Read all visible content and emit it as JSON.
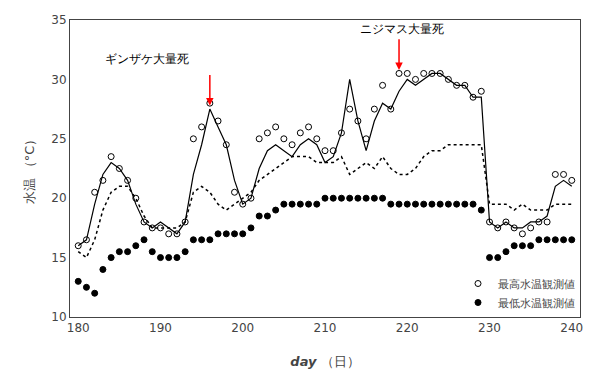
{
  "chart_data": {
    "type": "line",
    "xlabel": [
      "day",
      "（日）"
    ],
    "ylabel": [
      "水温",
      "（°C）"
    ],
    "xlim": [
      179,
      241
    ],
    "ylim": [
      10,
      35
    ],
    "xticks": [
      180,
      190,
      200,
      210,
      220,
      230,
      240
    ],
    "yticks": [
      10,
      15,
      20,
      25,
      30,
      35
    ],
    "grid": false,
    "legend": "lower right",
    "x": [
      180,
      181,
      182,
      183,
      184,
      185,
      186,
      187,
      188,
      189,
      190,
      191,
      192,
      193,
      194,
      195,
      196,
      197,
      198,
      199,
      200,
      201,
      202,
      203,
      204,
      205,
      206,
      207,
      208,
      209,
      210,
      211,
      212,
      213,
      214,
      215,
      216,
      217,
      218,
      219,
      220,
      221,
      222,
      223,
      224,
      225,
      226,
      227,
      228,
      229,
      230,
      231,
      232,
      233,
      234,
      235,
      236,
      237,
      238,
      239,
      240
    ],
    "series": [
      {
        "type": "line",
        "line_style": "solid",
        "color": "black",
        "values": [
          16.0,
          16.5,
          19.5,
          22.0,
          23.0,
          22.5,
          21.5,
          19.5,
          18.0,
          17.5,
          18.0,
          17.5,
          17.0,
          18.0,
          22.0,
          24.5,
          27.5,
          26.0,
          24.5,
          21.5,
          19.5,
          20.0,
          22.5,
          24.0,
          24.5,
          24.0,
          23.5,
          24.5,
          25.0,
          24.5,
          23.0,
          23.5,
          25.5,
          30.0,
          26.5,
          24.0,
          26.5,
          28.0,
          27.5,
          29.0,
          30.0,
          29.5,
          30.0,
          30.5,
          30.5,
          30.0,
          29.5,
          29.5,
          28.5,
          28.5,
          18.0,
          17.5,
          18.0,
          17.5,
          17.5,
          18.0,
          18.0,
          18.5,
          21.0,
          21.5,
          21.0
        ]
      },
      {
        "name": "最高水温観測値",
        "type": "scatter",
        "marker": "open",
        "color": "black",
        "values": [
          16.0,
          16.5,
          20.5,
          21.5,
          23.5,
          22.5,
          21.5,
          20.0,
          18.0,
          17.5,
          17.5,
          17.0,
          17.0,
          18.0,
          25.0,
          26.0,
          28.0,
          26.5,
          24.5,
          20.5,
          19.5,
          20.0,
          25.0,
          25.5,
          26.0,
          25.0,
          24.5,
          25.5,
          26.0,
          25.0,
          24.0,
          24.0,
          25.5,
          27.5,
          26.5,
          25.0,
          27.5,
          29.5,
          27.5,
          30.5,
          30.5,
          30.0,
          30.5,
          30.5,
          30.5,
          30.0,
          29.5,
          29.5,
          28.5,
          29.0,
          18.0,
          17.5,
          18.0,
          17.5,
          17.0,
          17.5,
          18.0,
          18.0,
          22.0,
          22.0,
          21.5
        ]
      },
      {
        "type": "line",
        "line_style": "dotted",
        "color": "black",
        "values": [
          15.5,
          15.0,
          16.5,
          19.0,
          20.5,
          21.0,
          21.0,
          20.0,
          18.5,
          17.5,
          17.5,
          17.5,
          17.5,
          18.0,
          20.5,
          21.0,
          20.5,
          19.5,
          19.0,
          19.5,
          20.0,
          20.5,
          21.5,
          22.0,
          22.5,
          23.0,
          23.5,
          23.5,
          23.5,
          23.0,
          23.0,
          23.0,
          23.5,
          22.0,
          22.5,
          23.0,
          22.5,
          23.5,
          22.5,
          22.0,
          22.0,
          22.5,
          23.5,
          24.0,
          24.0,
          24.5,
          24.5,
          24.5,
          24.5,
          24.5,
          19.5,
          19.5,
          19.5,
          19.0,
          19.5,
          19.0,
          19.0,
          19.0,
          19.5,
          19.5,
          19.5
        ]
      },
      {
        "name": "最低水温観測値",
        "type": "scatter",
        "marker": "filled",
        "color": "black",
        "values": [
          13.0,
          12.5,
          12.0,
          14.0,
          15.0,
          15.5,
          15.5,
          16.0,
          16.5,
          15.5,
          15.0,
          15.0,
          15.0,
          15.5,
          16.5,
          16.5,
          16.5,
          17.0,
          17.0,
          17.0,
          17.0,
          17.5,
          18.5,
          18.5,
          19.0,
          19.5,
          19.5,
          19.5,
          19.5,
          19.5,
          20.0,
          20.0,
          20.0,
          20.0,
          20.0,
          20.0,
          20.0,
          20.0,
          19.5,
          19.5,
          19.5,
          19.5,
          19.5,
          19.5,
          19.5,
          19.5,
          19.5,
          19.5,
          19.5,
          19.0,
          15.0,
          15.0,
          15.5,
          16.0,
          16.0,
          16.0,
          16.5,
          16.5,
          16.5,
          16.5,
          16.5
        ]
      }
    ],
    "annotations": [
      {
        "text": "ギンザケ大量死",
        "x": 183,
        "y": 31.0,
        "arrow_x": 196,
        "arrow_tip_y": 27.8,
        "arrow_base_y": 30.5,
        "color": "red"
      },
      {
        "text": "ニジマス大量死",
        "x": 214,
        "y": 33.5,
        "arrow_x": 219,
        "arrow_tip_y": 30.8,
        "arrow_base_y": 33.5,
        "color": "red"
      }
    ]
  }
}
